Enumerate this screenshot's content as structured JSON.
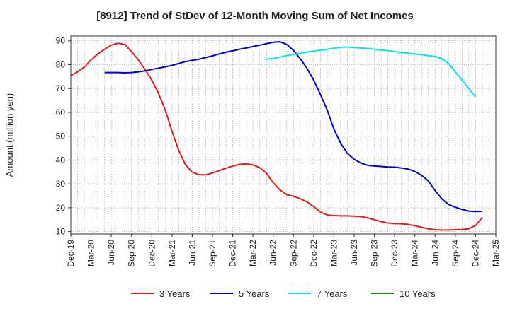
{
  "chart_data": {
    "type": "line",
    "title": "[8912]  Trend of StDev of 12-Month Moving Sum of Net Incomes",
    "ylabel": "Amount (million yen)",
    "xlabel": "",
    "ylim": [
      9,
      92
    ],
    "yticks": [
      10,
      20,
      30,
      40,
      50,
      60,
      70,
      80,
      90
    ],
    "xlim": [
      "2019-12",
      "2025-03"
    ],
    "xticks": [
      "Dec-19",
      "Mar-20",
      "Jun-20",
      "Sep-20",
      "Dec-20",
      "Mar-21",
      "Jun-21",
      "Sep-21",
      "Dec-21",
      "Mar-22",
      "Jun-22",
      "Sep-22",
      "Dec-22",
      "Mar-23",
      "Jun-23",
      "Sep-23",
      "Dec-23",
      "Mar-24",
      "Jun-24",
      "Sep-24",
      "Dec-24",
      "Mar-25"
    ],
    "grid": true,
    "legend_position": "bottom",
    "series": [
      {
        "name": "3 Years",
        "color": "#e41a1c",
        "points": [
          [
            "2019-12",
            75.5
          ],
          [
            "2020-01",
            77
          ],
          [
            "2020-02",
            79
          ],
          [
            "2020-03",
            82
          ],
          [
            "2020-04",
            84.5
          ],
          [
            "2020-05",
            86.5
          ],
          [
            "2020-06",
            88.2
          ],
          [
            "2020-07",
            89
          ],
          [
            "2020-08",
            88.5
          ],
          [
            "2020-09",
            85.5
          ],
          [
            "2020-10",
            82
          ],
          [
            "2020-11",
            78
          ],
          [
            "2020-12",
            73.5
          ],
          [
            "2021-01",
            68
          ],
          [
            "2021-02",
            61
          ],
          [
            "2021-03",
            52
          ],
          [
            "2021-04",
            44
          ],
          [
            "2021-05",
            38
          ],
          [
            "2021-06",
            35
          ],
          [
            "2021-07",
            33.8
          ],
          [
            "2021-08",
            33.8
          ],
          [
            "2021-09",
            34.6
          ],
          [
            "2021-10",
            35.6
          ],
          [
            "2021-11",
            36.6
          ],
          [
            "2021-12",
            37.5
          ],
          [
            "2022-01",
            38.2
          ],
          [
            "2022-02",
            38.4
          ],
          [
            "2022-03",
            38
          ],
          [
            "2022-04",
            36.8
          ],
          [
            "2022-05",
            34.5
          ],
          [
            "2022-06",
            30.5
          ],
          [
            "2022-07",
            27.5
          ],
          [
            "2022-08",
            25.5
          ],
          [
            "2022-09",
            24.8
          ],
          [
            "2022-10",
            23.8
          ],
          [
            "2022-11",
            22.5
          ],
          [
            "2022-12",
            20.5
          ],
          [
            "2023-01",
            18.2
          ],
          [
            "2023-02",
            17
          ],
          [
            "2023-03",
            16.7
          ],
          [
            "2023-04",
            16.6
          ],
          [
            "2023-05",
            16.6
          ],
          [
            "2023-06",
            16.5
          ],
          [
            "2023-07",
            16.3
          ],
          [
            "2023-08",
            15.8
          ],
          [
            "2023-09",
            15
          ],
          [
            "2023-10",
            14.2
          ],
          [
            "2023-11",
            13.6
          ],
          [
            "2023-12",
            13.4
          ],
          [
            "2024-01",
            13.3
          ],
          [
            "2024-02",
            13
          ],
          [
            "2024-03",
            12.5
          ],
          [
            "2024-04",
            11.8
          ],
          [
            "2024-05",
            11.2
          ],
          [
            "2024-06",
            10.8
          ],
          [
            "2024-07",
            10.6
          ],
          [
            "2024-08",
            10.7
          ],
          [
            "2024-09",
            10.8
          ],
          [
            "2024-10",
            10.9
          ],
          [
            "2024-11",
            11.2
          ],
          [
            "2024-12",
            12.6
          ],
          [
            "2025-01",
            16
          ]
        ]
      },
      {
        "name": "5 Years",
        "color": "#0000cc",
        "points": [
          [
            "2020-05",
            76.7
          ],
          [
            "2020-06",
            76.7
          ],
          [
            "2020-07",
            76.7
          ],
          [
            "2020-08",
            76.6
          ],
          [
            "2020-09",
            76.7
          ],
          [
            "2020-10",
            77
          ],
          [
            "2020-11",
            77.4
          ],
          [
            "2020-12",
            78
          ],
          [
            "2021-01",
            78.5
          ],
          [
            "2021-02",
            79.1
          ],
          [
            "2021-03",
            79.7
          ],
          [
            "2021-04",
            80.5
          ],
          [
            "2021-05",
            81.3
          ],
          [
            "2021-06",
            81.8
          ],
          [
            "2021-07",
            82.3
          ],
          [
            "2021-08",
            83
          ],
          [
            "2021-09",
            83.7
          ],
          [
            "2021-10",
            84.5
          ],
          [
            "2021-11",
            85.2
          ],
          [
            "2021-12",
            85.8
          ],
          [
            "2022-01",
            86.5
          ],
          [
            "2022-02",
            87
          ],
          [
            "2022-03",
            87.6
          ],
          [
            "2022-04",
            88.2
          ],
          [
            "2022-05",
            88.8
          ],
          [
            "2022-06",
            89.4
          ],
          [
            "2022-07",
            89.6
          ],
          [
            "2022-08",
            88.5
          ],
          [
            "2022-09",
            86
          ],
          [
            "2022-10",
            82.5
          ],
          [
            "2022-11",
            78.5
          ],
          [
            "2022-12",
            73.5
          ],
          [
            "2023-01",
            67.5
          ],
          [
            "2023-02",
            61
          ],
          [
            "2023-03",
            53
          ],
          [
            "2023-04",
            47
          ],
          [
            "2023-05",
            42.8
          ],
          [
            "2023-06",
            40.3
          ],
          [
            "2023-07",
            38.7
          ],
          [
            "2023-08",
            37.8
          ],
          [
            "2023-09",
            37.5
          ],
          [
            "2023-10",
            37.3
          ],
          [
            "2023-11",
            37.1
          ],
          [
            "2023-12",
            37
          ],
          [
            "2024-01",
            36.7
          ],
          [
            "2024-02",
            36.2
          ],
          [
            "2024-03",
            35.2
          ],
          [
            "2024-04",
            33.6
          ],
          [
            "2024-05",
            31.2
          ],
          [
            "2024-06",
            27.2
          ],
          [
            "2024-07",
            23.7
          ],
          [
            "2024-08",
            21.4
          ],
          [
            "2024-09",
            20.2
          ],
          [
            "2024-10",
            19.3
          ],
          [
            "2024-11",
            18.6
          ],
          [
            "2024-12",
            18.4
          ],
          [
            "2025-01",
            18.5
          ]
        ]
      },
      {
        "name": "7 Years",
        "color": "#00e5ee",
        "points": [
          [
            "2022-05",
            82.3
          ],
          [
            "2022-06",
            82.6
          ],
          [
            "2022-07",
            83.2
          ],
          [
            "2022-08",
            83.8
          ],
          [
            "2022-09",
            84.3
          ],
          [
            "2022-10",
            84.8
          ],
          [
            "2022-11",
            85.3
          ],
          [
            "2022-12",
            85.7
          ],
          [
            "2023-01",
            86.1
          ],
          [
            "2023-02",
            86.5
          ],
          [
            "2023-03",
            86.9
          ],
          [
            "2023-04",
            87.3
          ],
          [
            "2023-05",
            87.4
          ],
          [
            "2023-06",
            87.2
          ],
          [
            "2023-07",
            87
          ],
          [
            "2023-08",
            86.8
          ],
          [
            "2023-09",
            86.5
          ],
          [
            "2023-10",
            86.2
          ],
          [
            "2023-11",
            85.9
          ],
          [
            "2023-12",
            85.5
          ],
          [
            "2024-01",
            85.1
          ],
          [
            "2024-02",
            84.8
          ],
          [
            "2024-03",
            84.5
          ],
          [
            "2024-04",
            84.2
          ],
          [
            "2024-05",
            83.8
          ],
          [
            "2024-06",
            83.5
          ],
          [
            "2024-07",
            82.5
          ],
          [
            "2024-08",
            80.5
          ],
          [
            "2024-09",
            77
          ],
          [
            "2024-10",
            73.5
          ],
          [
            "2024-11",
            70
          ],
          [
            "2024-12",
            66.5
          ]
        ]
      },
      {
        "name": "10 Years",
        "color": "#228b22",
        "points": []
      }
    ]
  }
}
